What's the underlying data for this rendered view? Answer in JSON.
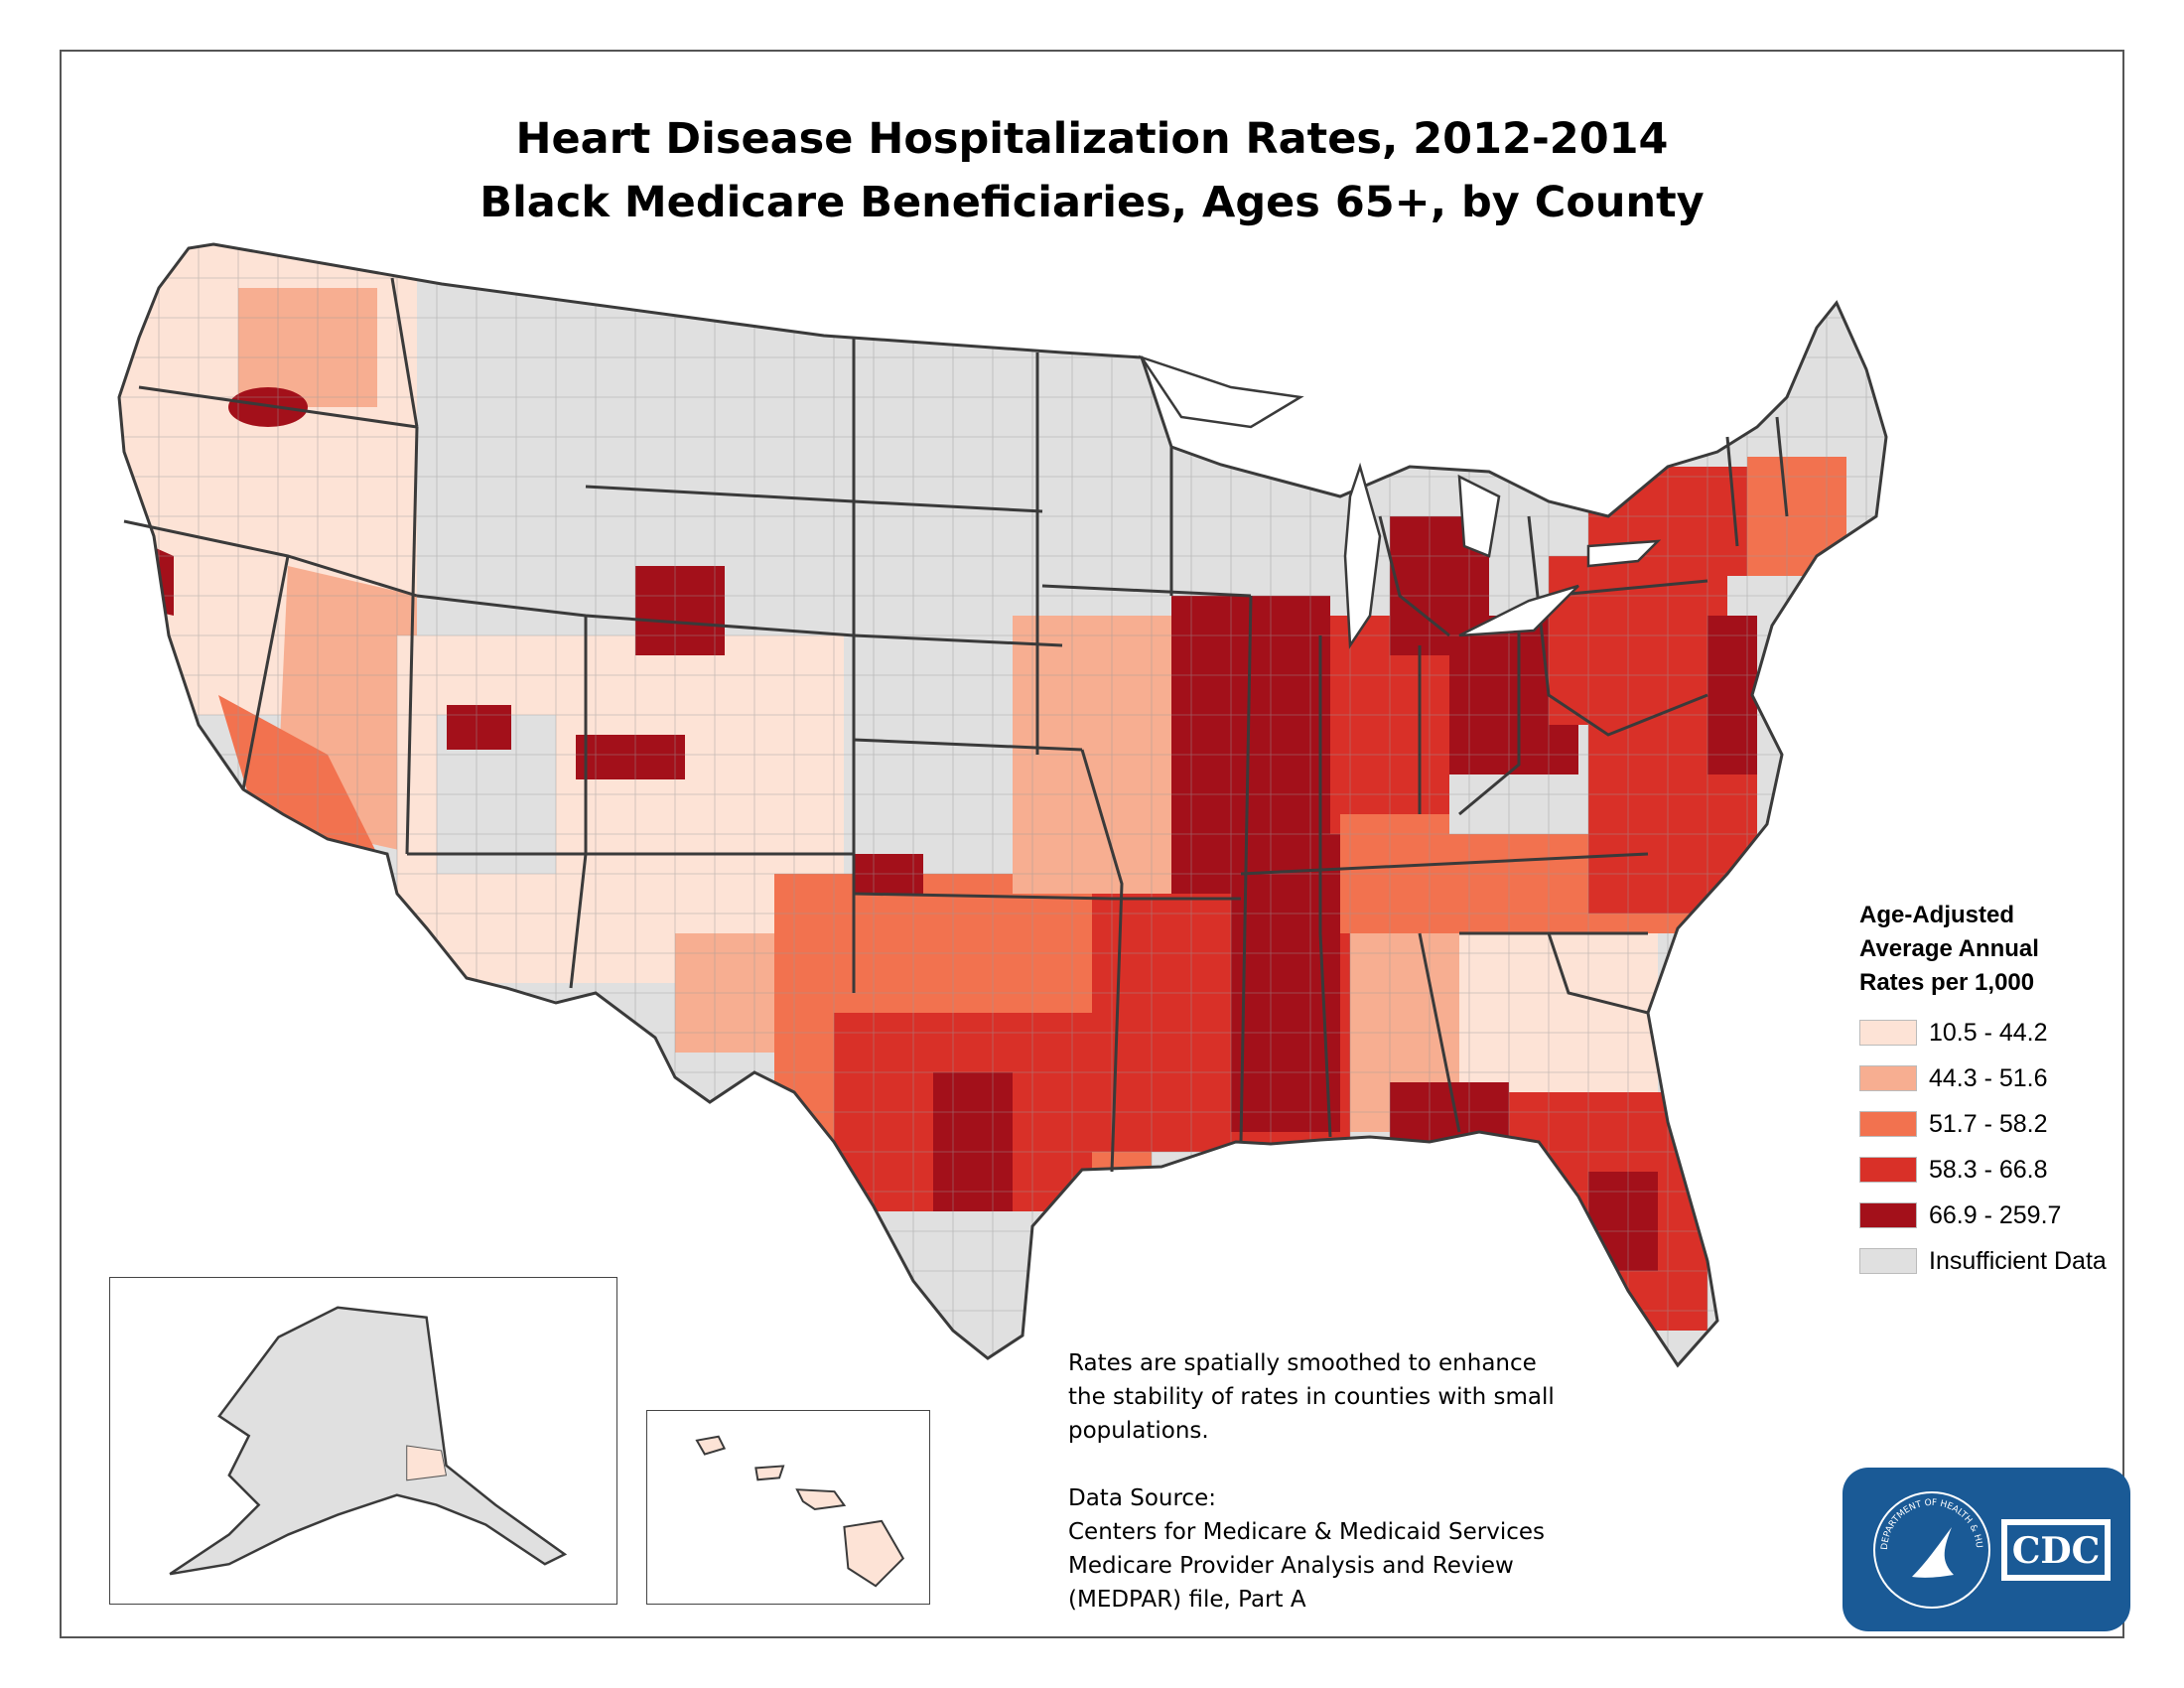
{
  "title": {
    "line1": "Heart Disease Hospitalization Rates, 2012-2014",
    "line2": "Black Medicare Beneficiaries, Ages 65+, by County"
  },
  "legend": {
    "title_line1": "Age-Adjusted",
    "title_line2": "Average Annual",
    "title_line3": "Rates per 1,000",
    "items": [
      {
        "label": "10.5 - 44.2",
        "color": "#fde3d6"
      },
      {
        "label": "44.3 - 51.6",
        "color": "#f7ae91"
      },
      {
        "label": "51.7 - 58.2",
        "color": "#f2724f"
      },
      {
        "label": "58.3 - 66.8",
        "color": "#d93028"
      },
      {
        "label": "66.9 - 259.7",
        "color": "#a3101a"
      },
      {
        "label": "Insufficient Data",
        "color": "#e0e0e0"
      }
    ]
  },
  "note": {
    "line1": "Rates are spatially smoothed to enhance",
    "line2": "the stability of rates in counties with small",
    "line3": "populations."
  },
  "source": {
    "line1": "Data Source:",
    "line2": "Centers for Medicare & Medicaid Services",
    "line3": "Medicare Provider Analysis and Review",
    "line4": "(MEDPAR) file, Part A"
  },
  "logo": {
    "text": "CDC",
    "ring_text": "DEPARTMENT OF HEALTH & HUMAN SERVICES • USA"
  },
  "colors": {
    "border": "#3a3a3a",
    "no_data": "#e0e0e0"
  }
}
